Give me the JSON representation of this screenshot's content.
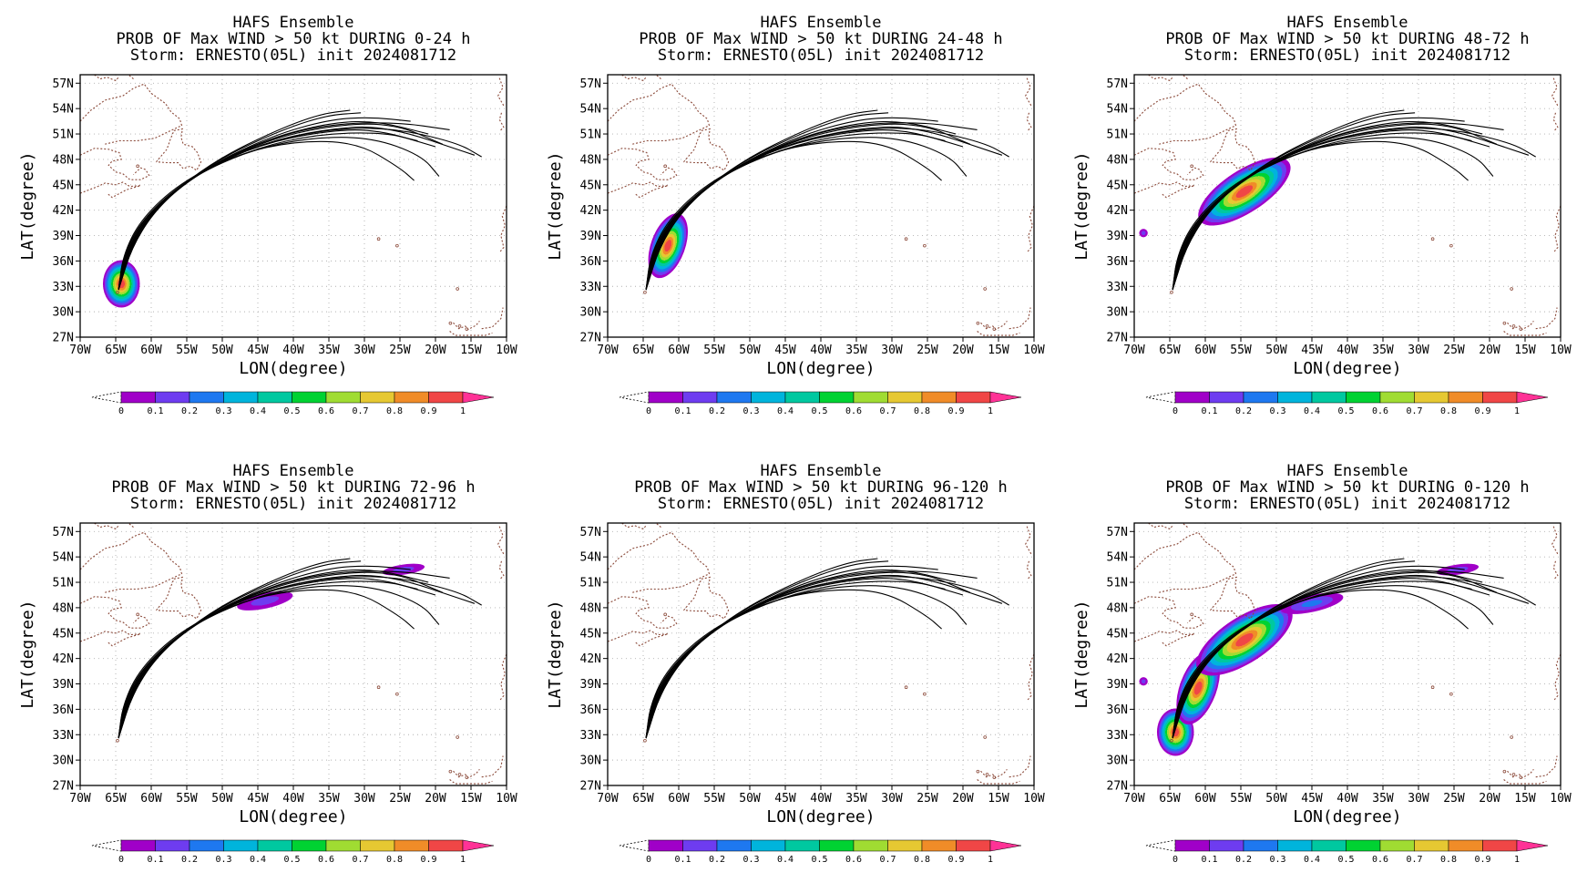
{
  "figure": {
    "xlabel": "LON(degree)",
    "ylabel": "LAT(degree)",
    "x_ticks": [
      "70W",
      "65W",
      "60W",
      "55W",
      "50W",
      "45W",
      "40W",
      "35W",
      "30W",
      "25W",
      "20W",
      "15W",
      "10W"
    ],
    "y_ticks": [
      "27N",
      "30N",
      "33N",
      "36N",
      "39N",
      "42N",
      "45N",
      "48N",
      "51N",
      "54N",
      "57N"
    ],
    "colorbar": {
      "labels": [
        "0",
        "0.1",
        "0.2",
        "0.3",
        "0.4",
        "0.5",
        "0.6",
        "0.7",
        "0.8",
        "0.9",
        "1"
      ],
      "colors": [
        "#a000c8",
        "#6e3cf0",
        "#1e78f0",
        "#00b4dc",
        "#00c8a0",
        "#00d232",
        "#a0dc32",
        "#e6c832",
        "#f08c28",
        "#f04646",
        "#ff3296"
      ]
    },
    "colors": {
      "track": "#000000",
      "coast": "#8b4a3a",
      "grid": "#b0b0b0"
    }
  },
  "chart_data": [
    {
      "type": "heatmap",
      "title": "HAFS Ensemble",
      "subtitle": "PROB OF Max WIND > 50 kt DURING  0-24 h",
      "storm_line": "Storm: ERNESTO(05L) init 2024081712",
      "xlabel": "LON(degree)",
      "ylabel": "LAT(degree)",
      "xlim": [
        -70,
        -10
      ],
      "ylim": [
        27,
        58
      ],
      "probability_blobs": [
        {
          "lon": -64.2,
          "lat": 33.3,
          "rx": 2.6,
          "ry": 2.8,
          "peak": 1.0,
          "tilt": 0
        }
      ]
    },
    {
      "type": "heatmap",
      "title": "HAFS Ensemble",
      "subtitle": "PROB OF Max WIND > 50 kt DURING 24-48 h",
      "storm_line": "Storm: ERNESTO(05L) init 2024081712",
      "xlabel": "LON(degree)",
      "ylabel": "LAT(degree)",
      "xlim": [
        -70,
        -10
      ],
      "ylim": [
        27,
        58
      ],
      "probability_blobs": [
        {
          "lon": -61.5,
          "lat": 37.8,
          "rx": 2.4,
          "ry": 4.0,
          "peak": 1.0,
          "tilt": 20
        }
      ]
    },
    {
      "type": "heatmap",
      "title": "HAFS Ensemble",
      "subtitle": "PROB OF Max WIND > 50 kt DURING 48-72 h",
      "storm_line": "Storm: ERNESTO(05L) init 2024081712",
      "xlabel": "LON(degree)",
      "ylabel": "LAT(degree)",
      "xlim": [
        -70,
        -10
      ],
      "ylim": [
        27,
        58
      ],
      "probability_blobs": [
        {
          "lon": -54.5,
          "lat": 44.2,
          "rx": 7.5,
          "ry": 2.5,
          "peak": 0.95,
          "tilt": -33
        },
        {
          "lon": -68.7,
          "lat": 39.3,
          "rx": 0.6,
          "ry": 0.5,
          "peak": 0.05,
          "tilt": 0
        }
      ]
    },
    {
      "type": "heatmap",
      "title": "HAFS Ensemble",
      "subtitle": "PROB OF Max WIND > 50 kt DURING 72-96 h",
      "storm_line": "Storm: ERNESTO(05L) init 2024081712",
      "xlabel": "LON(degree)",
      "ylabel": "LAT(degree)",
      "xlim": [
        -70,
        -10
      ],
      "ylim": [
        27,
        58
      ],
      "probability_blobs": [
        {
          "lon": -44.0,
          "lat": 48.8,
          "rx": 4.0,
          "ry": 0.9,
          "peak": 0.1,
          "tilt": -12
        },
        {
          "lon": -24.5,
          "lat": 52.5,
          "rx": 3.0,
          "ry": 0.6,
          "peak": 0.1,
          "tilt": -8
        }
      ]
    },
    {
      "type": "heatmap",
      "title": "HAFS Ensemble",
      "subtitle": "PROB OF Max WIND > 50 kt DURING 96-120 h",
      "storm_line": "Storm: ERNESTO(05L) init 2024081712",
      "xlabel": "LON(degree)",
      "ylabel": "LAT(degree)",
      "xlim": [
        -70,
        -10
      ],
      "ylim": [
        27,
        58
      ],
      "probability_blobs": []
    },
    {
      "type": "heatmap",
      "title": "HAFS Ensemble",
      "subtitle": "PROB OF Max WIND > 50 kt DURING 0-120 h",
      "storm_line": "Storm: ERNESTO(05L) init 2024081712",
      "xlabel": "LON(degree)",
      "ylabel": "LAT(degree)",
      "xlim": [
        -70,
        -10
      ],
      "ylim": [
        27,
        58
      ],
      "probability_blobs": [
        {
          "lon": -64.2,
          "lat": 33.3,
          "rx": 2.6,
          "ry": 2.8,
          "peak": 1.0,
          "tilt": 0
        },
        {
          "lon": -61.0,
          "lat": 38.5,
          "rx": 2.6,
          "ry": 4.5,
          "peak": 1.0,
          "tilt": 20
        },
        {
          "lon": -54.5,
          "lat": 44.2,
          "rx": 7.8,
          "ry": 2.7,
          "peak": 1.0,
          "tilt": -33
        },
        {
          "lon": -45.0,
          "lat": 48.5,
          "rx": 4.5,
          "ry": 1.0,
          "peak": 0.2,
          "tilt": -12
        },
        {
          "lon": -24.5,
          "lat": 52.5,
          "rx": 3.0,
          "ry": 0.6,
          "peak": 0.1,
          "tilt": -8
        },
        {
          "lon": -68.7,
          "lat": 39.3,
          "rx": 0.6,
          "ry": 0.5,
          "peak": 0.05,
          "tilt": 0
        }
      ]
    }
  ],
  "ensemble_tracks": {
    "start": {
      "lon": -64.6,
      "lat": 32.6
    },
    "members": [
      [
        [
          -64.6,
          32.6
        ],
        [
          -63.6,
          37.0
        ],
        [
          -60.5,
          41.6
        ],
        [
          -54.0,
          46.2
        ],
        [
          -45.0,
          49.7
        ],
        [
          -36.0,
          51.3
        ],
        [
          -28.5,
          51.6
        ],
        [
          -20.0,
          49.5
        ]
      ],
      [
        [
          -64.6,
          32.6
        ],
        [
          -63.4,
          37.2
        ],
        [
          -60.0,
          41.8
        ],
        [
          -53.5,
          46.4
        ],
        [
          -44.5,
          49.9
        ],
        [
          -35.5,
          51.6
        ],
        [
          -27.0,
          52.0
        ],
        [
          -14.5,
          48.5
        ]
      ],
      [
        [
          -64.6,
          32.6
        ],
        [
          -63.2,
          37.4
        ],
        [
          -59.8,
          42.0
        ],
        [
          -53.0,
          46.6
        ],
        [
          -44.0,
          50.2
        ],
        [
          -35.0,
          52.0
        ],
        [
          -26.0,
          52.3
        ],
        [
          -19.0,
          49.8
        ]
      ],
      [
        [
          -64.6,
          32.6
        ],
        [
          -63.0,
          37.6
        ],
        [
          -59.5,
          42.3
        ],
        [
          -52.5,
          46.9
        ],
        [
          -43.5,
          50.5
        ],
        [
          -34.5,
          52.4
        ],
        [
          -28.0,
          52.5
        ],
        [
          -21.0,
          51.0
        ]
      ],
      [
        [
          -64.6,
          32.6
        ],
        [
          -62.8,
          37.8
        ],
        [
          -59.0,
          42.6
        ],
        [
          -52.0,
          47.2
        ],
        [
          -43.0,
          50.8
        ],
        [
          -35.0,
          52.7
        ],
        [
          -29.0,
          53.0
        ],
        [
          -23.5,
          52.5
        ]
      ],
      [
        [
          -64.6,
          32.6
        ],
        [
          -62.6,
          38.0
        ],
        [
          -58.6,
          42.9
        ],
        [
          -51.5,
          47.6
        ],
        [
          -42.5,
          51.2
        ],
        [
          -35.5,
          53.2
        ],
        [
          -30.5,
          53.5
        ]
      ],
      [
        [
          -64.6,
          32.6
        ],
        [
          -62.5,
          38.2
        ],
        [
          -58.3,
          43.2
        ],
        [
          -51.0,
          47.9
        ],
        [
          -42.0,
          51.6
        ],
        [
          -36.0,
          53.4
        ],
        [
          -32.0,
          53.8
        ]
      ],
      [
        [
          -64.6,
          32.6
        ],
        [
          -63.8,
          36.8
        ],
        [
          -61.0,
          41.2
        ],
        [
          -55.0,
          45.6
        ],
        [
          -46.5,
          49.0
        ],
        [
          -37.5,
          50.6
        ],
        [
          -29.0,
          50.6
        ],
        [
          -22.0,
          48.5
        ],
        [
          -19.5,
          46.0
        ]
      ],
      [
        [
          -64.6,
          32.6
        ],
        [
          -64.0,
          36.6
        ],
        [
          -61.5,
          40.9
        ],
        [
          -56.0,
          45.2
        ],
        [
          -48.0,
          48.6
        ],
        [
          -39.5,
          50.2
        ],
        [
          -31.0,
          50.0
        ],
        [
          -25.0,
          47.0
        ],
        [
          -23.0,
          45.5
        ]
      ],
      [
        [
          -64.6,
          32.6
        ],
        [
          -63.9,
          36.9
        ],
        [
          -60.8,
          41.4
        ],
        [
          -54.5,
          45.9
        ],
        [
          -45.5,
          49.3
        ],
        [
          -36.5,
          51.0
        ],
        [
          -27.5,
          51.2
        ],
        [
          -22.5,
          50.2
        ]
      ],
      [
        [
          -64.6,
          32.6
        ],
        [
          -63.5,
          37.1
        ],
        [
          -60.2,
          41.7
        ],
        [
          -53.8,
          46.3
        ],
        [
          -44.8,
          49.8
        ],
        [
          -35.8,
          51.5
        ],
        [
          -26.5,
          51.8
        ],
        [
          -17.0,
          50.0
        ],
        [
          -13.5,
          48.3
        ]
      ],
      [
        [
          -64.6,
          32.6
        ],
        [
          -63.1,
          37.5
        ],
        [
          -59.6,
          42.2
        ],
        [
          -52.7,
          46.8
        ],
        [
          -43.7,
          50.4
        ],
        [
          -34.8,
          52.2
        ],
        [
          -25.5,
          52.4
        ],
        [
          -18.0,
          51.5
        ]
      ]
    ]
  },
  "coastlines": [
    [
      [
        -70,
        48.5
      ],
      [
        -68,
        49.3
      ],
      [
        -66,
        49.2
      ],
      [
        -64.5,
        48.8
      ],
      [
        -64.2,
        48.0
      ],
      [
        -65.5,
        47.8
      ],
      [
        -66.0,
        47.3
      ],
      [
        -65.0,
        46.5
      ],
      [
        -64.0,
        46.3
      ]
    ],
    [
      [
        -64.0,
        46.3
      ],
      [
        -63.0,
        45.6
      ],
      [
        -61.5,
        45.6
      ],
      [
        -60.3,
        46.1
      ],
      [
        -60.8,
        46.8
      ],
      [
        -61.5,
        47.0
      ],
      [
        -62.5,
        46.2
      ]
    ],
    [
      [
        -70,
        44.0
      ],
      [
        -67.5,
        44.8
      ],
      [
        -66.5,
        45.2
      ],
      [
        -65.0,
        45.0
      ],
      [
        -64.0,
        45.3
      ],
      [
        -63.0,
        44.8
      ],
      [
        -61.5,
        44.9
      ],
      [
        -63.5,
        44.4
      ],
      [
        -65.5,
        43.5
      ],
      [
        -66.2,
        44.0
      ]
    ],
    [
      [
        -59.3,
        47.7
      ],
      [
        -58.5,
        48.5
      ],
      [
        -57.8,
        49.2
      ],
      [
        -57.3,
        50.4
      ],
      [
        -56.8,
        51.4
      ],
      [
        -55.6,
        51.6
      ],
      [
        -55.8,
        50.6
      ],
      [
        -55.5,
        49.8
      ],
      [
        -54.2,
        49.5
      ],
      [
        -53.5,
        48.8
      ],
      [
        -53.0,
        47.7
      ],
      [
        -53.6,
        46.7
      ],
      [
        -54.5,
        47.2
      ],
      [
        -55.5,
        46.9
      ],
      [
        -56.2,
        47.6
      ],
      [
        -57.5,
        47.6
      ],
      [
        -59.3,
        47.7
      ]
    ],
    [
      [
        -70,
        52.5
      ],
      [
        -68.5,
        53.8
      ],
      [
        -66.5,
        55.0
      ],
      [
        -64.0,
        55.5
      ],
      [
        -62.5,
        56.4
      ],
      [
        -61.0,
        56.9
      ],
      [
        -60.0,
        55.8
      ],
      [
        -58.0,
        54.6
      ],
      [
        -57.2,
        53.6
      ],
      [
        -56.0,
        52.8
      ],
      [
        -55.7,
        52.0
      ],
      [
        -57.0,
        51.5
      ],
      [
        -59.5,
        50.5
      ],
      [
        -62.0,
        50.2
      ],
      [
        -64.5,
        50.2
      ],
      [
        -66.5,
        49.8
      ]
    ],
    [
      [
        -62.5,
        57.5
      ],
      [
        -63.2,
        58.0
      ]
    ],
    [
      [
        -68.0,
        58.0
      ],
      [
        -67.2,
        57.5
      ],
      [
        -66.2,
        57.7
      ],
      [
        -65.0,
        57.3
      ],
      [
        -64.5,
        57.8
      ]
    ],
    [
      [
        -11.0,
        57.6
      ],
      [
        -10.5,
        56.5
      ],
      [
        -11.2,
        55.5
      ],
      [
        -10.3,
        54.2
      ]
    ],
    [
      [
        -10.7,
        53.5
      ],
      [
        -11.0,
        52.7
      ],
      [
        -10.4,
        51.8
      ],
      [
        -11.0,
        51.3
      ]
    ],
    [
      [
        -10.0,
        42.5
      ],
      [
        -10.6,
        41.3
      ],
      [
        -10.2,
        40.2
      ],
      [
        -10.8,
        39.0
      ],
      [
        -10.4,
        37.6
      ],
      [
        -11.0,
        37.0
      ]
    ],
    [
      [
        -13.5,
        28.0
      ],
      [
        -12.0,
        28.2
      ],
      [
        -10.8,
        29.2
      ],
      [
        -10.5,
        30.5
      ]
    ],
    [
      [
        -17.5,
        28.7
      ],
      [
        -16.7,
        28.0
      ],
      [
        -15.8,
        28.3
      ],
      [
        -15.4,
        27.9
      ],
      [
        -14.3,
        28.4
      ],
      [
        -13.8,
        28.9
      ]
    ],
    [
      [
        -18.0,
        27.7
      ],
      [
        -17.2,
        27.2
      ],
      [
        -13.0,
        27.2
      ],
      [
        -12.0,
        27.5
      ]
    ]
  ],
  "islands": [
    {
      "lon": -64.75,
      "lat": 32.3
    },
    {
      "lon": -28.0,
      "lat": 38.6
    },
    {
      "lon": -25.4,
      "lat": 37.8
    },
    {
      "lon": -16.6,
      "lat": 28.3
    },
    {
      "lon": -15.6,
      "lat": 27.95
    },
    {
      "lon": -17.9,
      "lat": 28.65
    },
    {
      "lon": -16.9,
      "lat": 32.7
    },
    {
      "lon": -61.9,
      "lat": 47.2
    }
  ]
}
